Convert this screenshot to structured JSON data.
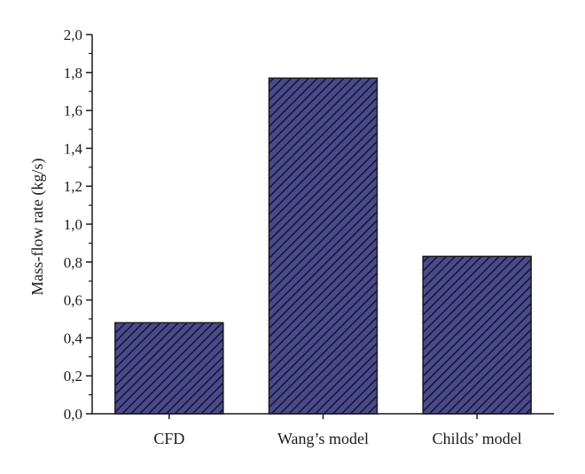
{
  "chart_data": {
    "type": "bar",
    "title": "",
    "xlabel": "",
    "ylabel": "Mass-flow rate (kg/s)",
    "categories": [
      "CFD",
      "Wang’s model",
      "Childs’ model"
    ],
    "values": [
      0.48,
      1.77,
      0.83
    ],
    "ylim": [
      0,
      2.0
    ],
    "yticks": [
      "0,0",
      "0,2",
      "0,4",
      "0,6",
      "0,8",
      "1,0",
      "1,2",
      "1,4",
      "1,6",
      "1,8",
      "2,0"
    ],
    "grid": false,
    "legend": "none",
    "colors": {
      "bar_fill": "#4a4a8c",
      "hatch": "#15152e",
      "axis": "#1a1a1a"
    }
  }
}
